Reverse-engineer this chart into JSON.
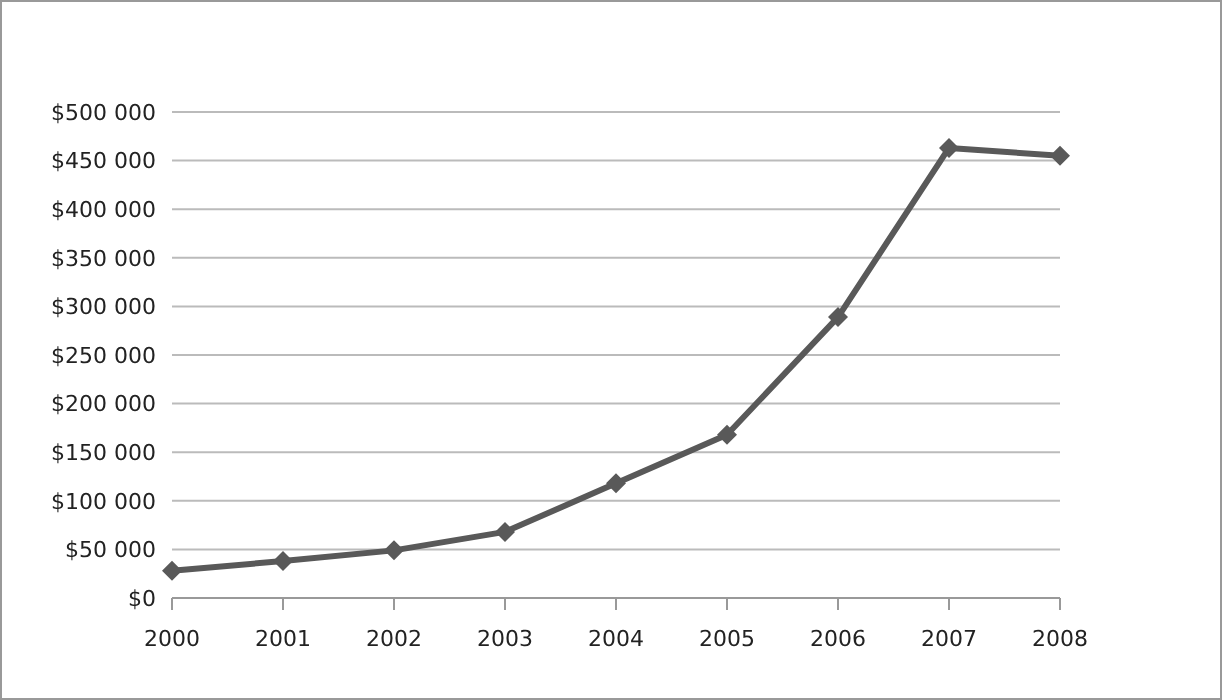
{
  "chart_data": {
    "type": "line",
    "categories": [
      "2000",
      "2001",
      "2002",
      "2003",
      "2004",
      "2005",
      "2006",
      "2007",
      "2008"
    ],
    "series": [
      {
        "color": "#595959",
        "values": [
          28000,
          38000,
          49000,
          68000,
          118000,
          168000,
          289000,
          463000,
          455000
        ]
      }
    ],
    "ylim": [
      0,
      500000
    ],
    "yticks": [
      {
        "value": 0,
        "label": "$0"
      },
      {
        "value": 50000,
        "label": "$50 000"
      },
      {
        "value": 100000,
        "label": "$100 000"
      },
      {
        "value": 150000,
        "label": "$150 000"
      },
      {
        "value": 200000,
        "label": "$200 000"
      },
      {
        "value": 250000,
        "label": "$250 000"
      },
      {
        "value": 300000,
        "label": "$300 000"
      },
      {
        "value": 350000,
        "label": "$350 000"
      },
      {
        "value": 400000,
        "label": "$400 000"
      },
      {
        "value": 450000,
        "label": "$450 000"
      },
      {
        "value": 500000,
        "label": "$500 000"
      }
    ],
    "grid": "y",
    "marker": "diamond",
    "legend": false
  }
}
